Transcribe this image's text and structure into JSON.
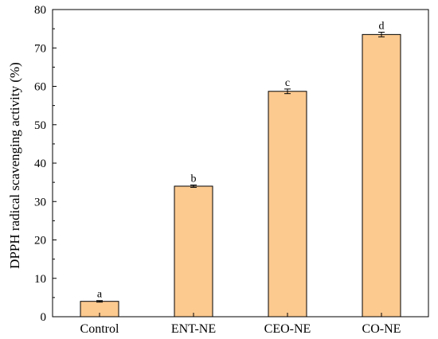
{
  "chart_data": {
    "type": "bar",
    "title": "",
    "xlabel": "",
    "ylabel": "DPPH radical scavenging activity (%)",
    "categories": [
      "Control",
      "ENT-NE",
      "CEO-NE",
      "CO-NE"
    ],
    "values": [
      4.0,
      34.0,
      58.7,
      73.5
    ],
    "errors": [
      0.2,
      0.3,
      0.6,
      0.6
    ],
    "significance": [
      "a",
      "b",
      "c",
      "d"
    ],
    "ylim": [
      0,
      80
    ],
    "yticks": [
      "0",
      "10",
      "20",
      "30",
      "40",
      "50",
      "60",
      "70",
      "80"
    ],
    "grid": false,
    "bar_color": "#fcc98f",
    "bar_edge_color": "#000000"
  }
}
